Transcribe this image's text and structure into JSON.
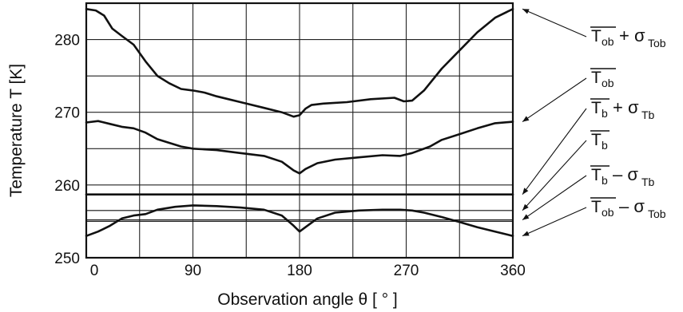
{
  "chart_data": {
    "type": "line",
    "xlabel": "Observation angle  θ [ ° ]",
    "ylabel": "Temperature  T [K]",
    "xlim": [
      0,
      360
    ],
    "ylim": [
      250,
      285
    ],
    "xticks": [
      0,
      90,
      180,
      270,
      360
    ],
    "xtick_labels": [
      "0",
      "90",
      "180",
      "270",
      "360"
    ],
    "yticks": [
      250,
      260,
      270,
      280
    ],
    "ytick_labels": [
      "250",
      "260",
      "270",
      "280"
    ],
    "x_grid_step": 45,
    "y_grid_step": 5,
    "grid": true,
    "legend_placement": "right",
    "series": [
      {
        "key": "tob_plus",
        "label_main": "T",
        "label_sub": "ob",
        "label_op": "+ σ",
        "label_op_sub": "Tob",
        "x": [
          0,
          8,
          15,
          22,
          30,
          40,
          50,
          60,
          70,
          80,
          90,
          100,
          110,
          120,
          135,
          150,
          165,
          175,
          180,
          185,
          190,
          200,
          220,
          240,
          260,
          268,
          275,
          285,
          300,
          315,
          330,
          345,
          360
        ],
        "y": [
          284.2,
          284,
          283.3,
          281.5,
          280.5,
          279.3,
          277,
          275,
          274,
          273.2,
          273,
          272.7,
          272.2,
          271.8,
          271.2,
          270.6,
          270,
          269.4,
          269.6,
          270.5,
          271,
          271.2,
          271.4,
          271.8,
          272,
          271.5,
          271.6,
          273,
          276,
          278.5,
          281,
          283,
          284.2
        ]
      },
      {
        "key": "tob",
        "label_main": "T",
        "label_sub": "ob",
        "label_op": "",
        "label_op_sub": "",
        "x": [
          0,
          10,
          20,
          30,
          40,
          50,
          60,
          70,
          80,
          90,
          110,
          130,
          150,
          165,
          175,
          180,
          185,
          195,
          210,
          230,
          250,
          265,
          275,
          290,
          300,
          315,
          330,
          345,
          360
        ],
        "y": [
          268.6,
          268.8,
          268.4,
          268,
          267.8,
          267.2,
          266.3,
          265.8,
          265.3,
          265,
          264.8,
          264.4,
          264,
          263.2,
          262,
          261.6,
          262.2,
          263,
          263.5,
          263.8,
          264.1,
          264,
          264.4,
          265.3,
          266.2,
          267,
          267.8,
          268.5,
          268.7
        ]
      },
      {
        "key": "tb_plus",
        "label_main": "T",
        "label_sub": "b",
        "label_op": "+ σ",
        "label_op_sub": "Tb",
        "x": [
          0,
          360
        ],
        "y": [
          258.7,
          258.7
        ]
      },
      {
        "key": "tb",
        "label_main": "T",
        "label_sub": "b",
        "label_op": "",
        "label_op_sub": "",
        "x": [
          0,
          360
        ],
        "y": [
          256.5,
          256.5
        ]
      },
      {
        "key": "tb_minus",
        "label_main": "T",
        "label_sub": "b",
        "label_op": "– σ",
        "label_op_sub": "Tb",
        "x": [
          0,
          360
        ],
        "y": [
          255.2,
          255.2
        ]
      },
      {
        "key": "tob_minus",
        "label_main": "T",
        "label_sub": "ob",
        "label_op": "– σ",
        "label_op_sub": "Tob",
        "x": [
          0,
          10,
          20,
          30,
          40,
          50,
          60,
          75,
          90,
          110,
          130,
          150,
          165,
          175,
          180,
          185,
          195,
          210,
          230,
          250,
          265,
          275,
          285,
          300,
          315,
          330,
          345,
          360
        ],
        "y": [
          253,
          253.6,
          254.4,
          255.4,
          255.8,
          256,
          256.6,
          257,
          257.2,
          257.1,
          256.9,
          256.6,
          255.8,
          254.4,
          253.6,
          254.2,
          255.4,
          256.2,
          256.5,
          256.6,
          256.6,
          256.5,
          256.2,
          255.6,
          254.9,
          254.2,
          253.6,
          253
        ]
      }
    ]
  }
}
